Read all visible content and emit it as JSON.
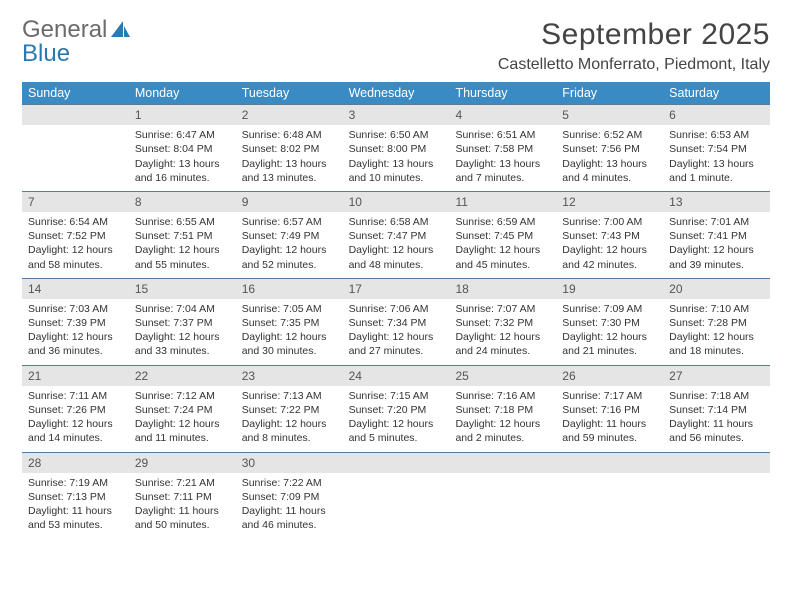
{
  "brand": {
    "part1": "General",
    "part2": "Blue"
  },
  "title": "September 2025",
  "location": "Castelletto Monferrato, Piedmont, Italy",
  "colors": {
    "header_blue": "#3a8ac4",
    "daynum_bg": "#e5e5e5",
    "rule": "#5a7a9a",
    "text": "#333333",
    "logo_gray": "#6b6b6b",
    "logo_blue": "#2a7ab0"
  },
  "dow": [
    "Sunday",
    "Monday",
    "Tuesday",
    "Wednesday",
    "Thursday",
    "Friday",
    "Saturday"
  ],
  "weeks": [
    [
      {
        "n": "",
        "sr": "",
        "ss": "",
        "dl": ""
      },
      {
        "n": "1",
        "sr": "Sunrise: 6:47 AM",
        "ss": "Sunset: 8:04 PM",
        "dl": "Daylight: 13 hours and 16 minutes."
      },
      {
        "n": "2",
        "sr": "Sunrise: 6:48 AM",
        "ss": "Sunset: 8:02 PM",
        "dl": "Daylight: 13 hours and 13 minutes."
      },
      {
        "n": "3",
        "sr": "Sunrise: 6:50 AM",
        "ss": "Sunset: 8:00 PM",
        "dl": "Daylight: 13 hours and 10 minutes."
      },
      {
        "n": "4",
        "sr": "Sunrise: 6:51 AM",
        "ss": "Sunset: 7:58 PM",
        "dl": "Daylight: 13 hours and 7 minutes."
      },
      {
        "n": "5",
        "sr": "Sunrise: 6:52 AM",
        "ss": "Sunset: 7:56 PM",
        "dl": "Daylight: 13 hours and 4 minutes."
      },
      {
        "n": "6",
        "sr": "Sunrise: 6:53 AM",
        "ss": "Sunset: 7:54 PM",
        "dl": "Daylight: 13 hours and 1 minute."
      }
    ],
    [
      {
        "n": "7",
        "sr": "Sunrise: 6:54 AM",
        "ss": "Sunset: 7:52 PM",
        "dl": "Daylight: 12 hours and 58 minutes."
      },
      {
        "n": "8",
        "sr": "Sunrise: 6:55 AM",
        "ss": "Sunset: 7:51 PM",
        "dl": "Daylight: 12 hours and 55 minutes."
      },
      {
        "n": "9",
        "sr": "Sunrise: 6:57 AM",
        "ss": "Sunset: 7:49 PM",
        "dl": "Daylight: 12 hours and 52 minutes."
      },
      {
        "n": "10",
        "sr": "Sunrise: 6:58 AM",
        "ss": "Sunset: 7:47 PM",
        "dl": "Daylight: 12 hours and 48 minutes."
      },
      {
        "n": "11",
        "sr": "Sunrise: 6:59 AM",
        "ss": "Sunset: 7:45 PM",
        "dl": "Daylight: 12 hours and 45 minutes."
      },
      {
        "n": "12",
        "sr": "Sunrise: 7:00 AM",
        "ss": "Sunset: 7:43 PM",
        "dl": "Daylight: 12 hours and 42 minutes."
      },
      {
        "n": "13",
        "sr": "Sunrise: 7:01 AM",
        "ss": "Sunset: 7:41 PM",
        "dl": "Daylight: 12 hours and 39 minutes."
      }
    ],
    [
      {
        "n": "14",
        "sr": "Sunrise: 7:03 AM",
        "ss": "Sunset: 7:39 PM",
        "dl": "Daylight: 12 hours and 36 minutes."
      },
      {
        "n": "15",
        "sr": "Sunrise: 7:04 AM",
        "ss": "Sunset: 7:37 PM",
        "dl": "Daylight: 12 hours and 33 minutes."
      },
      {
        "n": "16",
        "sr": "Sunrise: 7:05 AM",
        "ss": "Sunset: 7:35 PM",
        "dl": "Daylight: 12 hours and 30 minutes."
      },
      {
        "n": "17",
        "sr": "Sunrise: 7:06 AM",
        "ss": "Sunset: 7:34 PM",
        "dl": "Daylight: 12 hours and 27 minutes."
      },
      {
        "n": "18",
        "sr": "Sunrise: 7:07 AM",
        "ss": "Sunset: 7:32 PM",
        "dl": "Daylight: 12 hours and 24 minutes."
      },
      {
        "n": "19",
        "sr": "Sunrise: 7:09 AM",
        "ss": "Sunset: 7:30 PM",
        "dl": "Daylight: 12 hours and 21 minutes."
      },
      {
        "n": "20",
        "sr": "Sunrise: 7:10 AM",
        "ss": "Sunset: 7:28 PM",
        "dl": "Daylight: 12 hours and 18 minutes."
      }
    ],
    [
      {
        "n": "21",
        "sr": "Sunrise: 7:11 AM",
        "ss": "Sunset: 7:26 PM",
        "dl": "Daylight: 12 hours and 14 minutes."
      },
      {
        "n": "22",
        "sr": "Sunrise: 7:12 AM",
        "ss": "Sunset: 7:24 PM",
        "dl": "Daylight: 12 hours and 11 minutes."
      },
      {
        "n": "23",
        "sr": "Sunrise: 7:13 AM",
        "ss": "Sunset: 7:22 PM",
        "dl": "Daylight: 12 hours and 8 minutes."
      },
      {
        "n": "24",
        "sr": "Sunrise: 7:15 AM",
        "ss": "Sunset: 7:20 PM",
        "dl": "Daylight: 12 hours and 5 minutes."
      },
      {
        "n": "25",
        "sr": "Sunrise: 7:16 AM",
        "ss": "Sunset: 7:18 PM",
        "dl": "Daylight: 12 hours and 2 minutes."
      },
      {
        "n": "26",
        "sr": "Sunrise: 7:17 AM",
        "ss": "Sunset: 7:16 PM",
        "dl": "Daylight: 11 hours and 59 minutes."
      },
      {
        "n": "27",
        "sr": "Sunrise: 7:18 AM",
        "ss": "Sunset: 7:14 PM",
        "dl": "Daylight: 11 hours and 56 minutes."
      }
    ],
    [
      {
        "n": "28",
        "sr": "Sunrise: 7:19 AM",
        "ss": "Sunset: 7:13 PM",
        "dl": "Daylight: 11 hours and 53 minutes."
      },
      {
        "n": "29",
        "sr": "Sunrise: 7:21 AM",
        "ss": "Sunset: 7:11 PM",
        "dl": "Daylight: 11 hours and 50 minutes."
      },
      {
        "n": "30",
        "sr": "Sunrise: 7:22 AM",
        "ss": "Sunset: 7:09 PM",
        "dl": "Daylight: 11 hours and 46 minutes."
      },
      {
        "n": "",
        "sr": "",
        "ss": "",
        "dl": ""
      },
      {
        "n": "",
        "sr": "",
        "ss": "",
        "dl": ""
      },
      {
        "n": "",
        "sr": "",
        "ss": "",
        "dl": ""
      },
      {
        "n": "",
        "sr": "",
        "ss": "",
        "dl": ""
      }
    ]
  ]
}
